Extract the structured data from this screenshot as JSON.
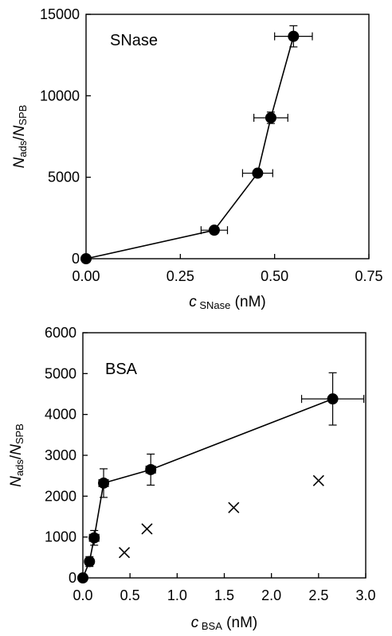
{
  "chart_data": [
    {
      "type": "scatter",
      "title": "SNase",
      "ylabel": {
        "main": "N",
        "sub1": "ads",
        "slash": "/",
        "main2": "N",
        "sub2": "SPB"
      },
      "xlabel": {
        "main": "c",
        "sub": "SNase",
        "unit": " (nM)"
      },
      "xlim": [
        0,
        0.75
      ],
      "ylim": [
        0,
        15000
      ],
      "xticks": [
        0,
        0.25,
        0.5,
        0.75
      ],
      "xtick_labels": [
        "0.00",
        "0.25",
        "0.50",
        "0.75"
      ],
      "yticks": [
        0,
        5000,
        10000,
        15000
      ],
      "ytick_labels": [
        "0",
        "5000",
        "10000",
        "15000"
      ],
      "grid": false,
      "series": [
        {
          "marker": "circle",
          "line": true,
          "points": [
            {
              "x": 0.0,
              "y": 0,
              "xerr": 0,
              "yerr": 0
            },
            {
              "x": 0.34,
              "y": 1750,
              "xerr": 0.035,
              "yerr": 0
            },
            {
              "x": 0.455,
              "y": 5250,
              "xerr": 0.04,
              "yerr": 0
            },
            {
              "x": 0.49,
              "y": 8650,
              "xerr": 0.045,
              "yerr": 350
            },
            {
              "x": 0.55,
              "y": 13650,
              "xerr": 0.05,
              "yerr": 650
            }
          ]
        }
      ]
    },
    {
      "type": "scatter",
      "title": "BSA",
      "ylabel": {
        "main": "N",
        "sub1": "ads",
        "slash": "/",
        "main2": "N",
        "sub2": "SPB"
      },
      "xlabel": {
        "main": "c",
        "sub": "BSA",
        "unit": " (nM)"
      },
      "xlim": [
        0,
        3.0
      ],
      "ylim": [
        0,
        6000
      ],
      "xticks": [
        0,
        0.5,
        1.0,
        1.5,
        2.0,
        2.5,
        3.0
      ],
      "xtick_labels": [
        "0.0",
        "0.5",
        "1.0",
        "1.5",
        "2.0",
        "2.5",
        "3.0"
      ],
      "yticks": [
        0,
        1000,
        2000,
        3000,
        4000,
        5000,
        6000
      ],
      "ytick_labels": [
        "0",
        "1000",
        "2000",
        "3000",
        "4000",
        "5000",
        "6000"
      ],
      "grid": false,
      "series": [
        {
          "marker": "circle",
          "line": true,
          "points": [
            {
              "x": 0.0,
              "y": 0,
              "xerr": 0,
              "yerr": 0
            },
            {
              "x": 0.07,
              "y": 400,
              "xerr": 0,
              "yerr": 120
            },
            {
              "x": 0.12,
              "y": 980,
              "xerr": 0.05,
              "yerr": 180
            },
            {
              "x": 0.22,
              "y": 2320,
              "xerr": 0.05,
              "yerr": 350
            },
            {
              "x": 0.72,
              "y": 2650,
              "xerr": 0.05,
              "yerr": 380
            },
            {
              "x": 2.65,
              "y": 4380,
              "xerr": 0.33,
              "yerr": 640
            }
          ]
        },
        {
          "marker": "cross",
          "line": false,
          "points": [
            {
              "x": 0.44,
              "y": 620
            },
            {
              "x": 0.68,
              "y": 1200
            },
            {
              "x": 1.6,
              "y": 1720
            },
            {
              "x": 2.5,
              "y": 2380
            }
          ]
        }
      ]
    }
  ]
}
